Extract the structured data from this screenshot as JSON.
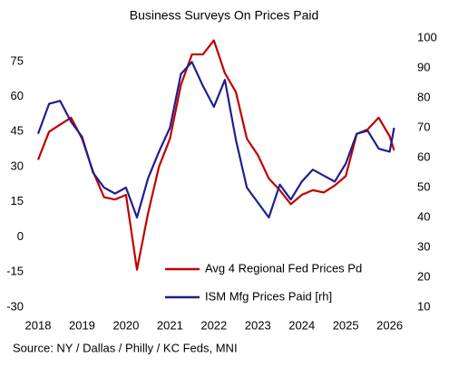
{
  "chart_data": {
    "type": "line",
    "title": "Business Surveys On Prices Paid",
    "source": "Source: NY / Dallas / Philly / KC Feds, MNI",
    "x": [
      2018,
      2018.25,
      2018.5,
      2018.75,
      2019,
      2019.25,
      2019.5,
      2019.75,
      2020,
      2020.25,
      2020.5,
      2020.75,
      2021,
      2021.25,
      2021.5,
      2021.75,
      2022,
      2022.25,
      2022.5,
      2022.75,
      2023,
      2023.25,
      2023.5,
      2023.75,
      2024,
      2024.25,
      2024.5,
      2024.75,
      2025,
      2025.25,
      2025.5,
      2025.75,
      2026,
      2026.1
    ],
    "xlim": [
      2018,
      2026.4
    ],
    "xticks": [
      2018,
      2019,
      2020,
      2021,
      2022,
      2023,
      2024,
      2025,
      2026
    ],
    "ylim": [
      -30,
      85
    ],
    "yticks": [
      -30,
      -15,
      0,
      15,
      30,
      45,
      60,
      75
    ],
    "y2lim": [
      10,
      100
    ],
    "y2ticks": [
      10,
      20,
      30,
      40,
      50,
      60,
      70,
      80,
      90,
      100
    ],
    "legend": "lower right",
    "series": [
      {
        "name": "Avg 4 Regional Fed Prices Pd",
        "color": "#c00000",
        "values": [
          33,
          45,
          48,
          51,
          42,
          28,
          17,
          16,
          18,
          -14,
          10,
          30,
          42,
          65,
          78,
          78,
          84,
          70,
          62,
          42,
          35,
          25,
          20,
          14,
          18,
          20,
          19,
          22,
          26,
          44,
          46,
          51,
          43,
          37
        ]
      },
      {
        "name": "ISM Mfg Prices Paid [rh]",
        "color": "#1f1f8f",
        "axis": "y2",
        "values": [
          68,
          78,
          79,
          72,
          67,
          55,
          50,
          48,
          50,
          40,
          53,
          62,
          70,
          88,
          92,
          84,
          77,
          86,
          66,
          50,
          45,
          40,
          51,
          46,
          52,
          56,
          54,
          52,
          58,
          68,
          69,
          63,
          62,
          70
        ]
      }
    ]
  }
}
